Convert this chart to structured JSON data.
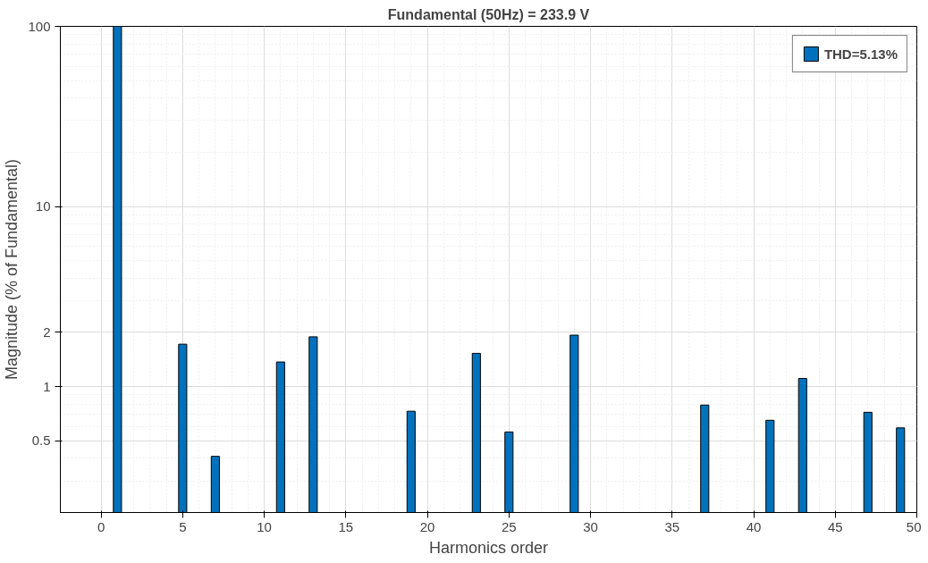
{
  "chart_data": {
    "type": "bar",
    "title": "Fundamental (50Hz) = 233.9 V",
    "xlabel": "Harmonics order",
    "ylabel": "Magnitude (% of Fundamental)",
    "x": [
      1,
      5,
      7,
      11,
      13,
      19,
      23,
      25,
      29,
      37,
      41,
      43,
      47,
      49
    ],
    "series": [
      {
        "name": "THD=5.13%",
        "color": "#0072bd",
        "values": [
          100,
          1.72,
          0.41,
          1.37,
          1.89,
          0.73,
          1.53,
          0.56,
          1.93,
          0.79,
          0.65,
          1.11,
          0.72,
          0.59
        ]
      }
    ],
    "log": "y",
    "xlim": [
      -2.5,
      50
    ],
    "xticks": [
      0,
      5,
      10,
      15,
      20,
      25,
      30,
      35,
      40,
      45,
      50
    ],
    "ylim": [
      0.2,
      100
    ],
    "yticks": [
      0.5,
      1,
      2,
      10,
      100
    ],
    "grid": true,
    "legend": "top right"
  }
}
